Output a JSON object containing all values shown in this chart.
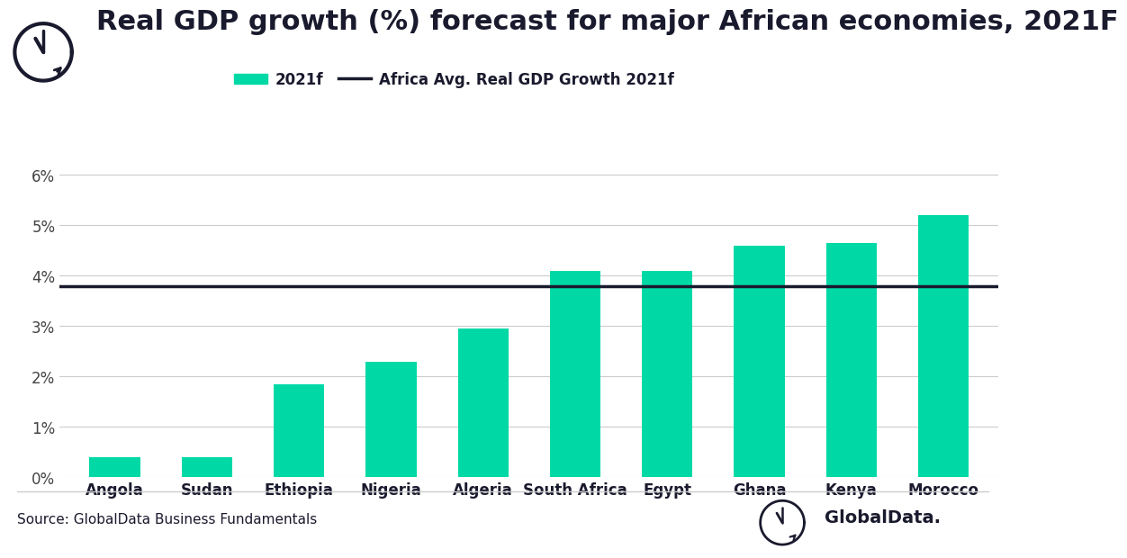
{
  "title": "Real GDP growth (%) forecast for major African economies, 2021F",
  "categories": [
    "Angola",
    "Sudan",
    "Ethiopia",
    "Nigeria",
    "Algeria",
    "South Africa",
    "Egypt",
    "Ghana",
    "Kenya",
    "Morocco"
  ],
  "values": [
    0.4,
    0.4,
    1.85,
    2.3,
    2.95,
    4.1,
    4.1,
    4.6,
    4.65,
    5.2
  ],
  "avg_line": 3.8,
  "bar_color": "#00D9A6",
  "avg_line_color": "#1a1a2e",
  "background_color": "#ffffff",
  "title_color": "#1a1a2e",
  "tick_color": "#444444",
  "grid_color": "#cccccc",
  "source_text": "Source: GlobalData Business Fundamentals",
  "globaldata_text": "GlobalData.",
  "legend_bar_label": "2021f",
  "legend_line_label": "Africa Avg. Real GDP Growth 2021f",
  "ylim": [
    0,
    6.5
  ],
  "yticks": [
    0,
    1,
    2,
    3,
    4,
    5,
    6
  ],
  "ytick_labels": [
    "0%",
    "1%",
    "2%",
    "3%",
    "4%",
    "5%",
    "6%"
  ],
  "title_fontsize": 22,
  "tick_fontsize": 12,
  "legend_fontsize": 12,
  "source_fontsize": 11,
  "bar_width": 0.55
}
